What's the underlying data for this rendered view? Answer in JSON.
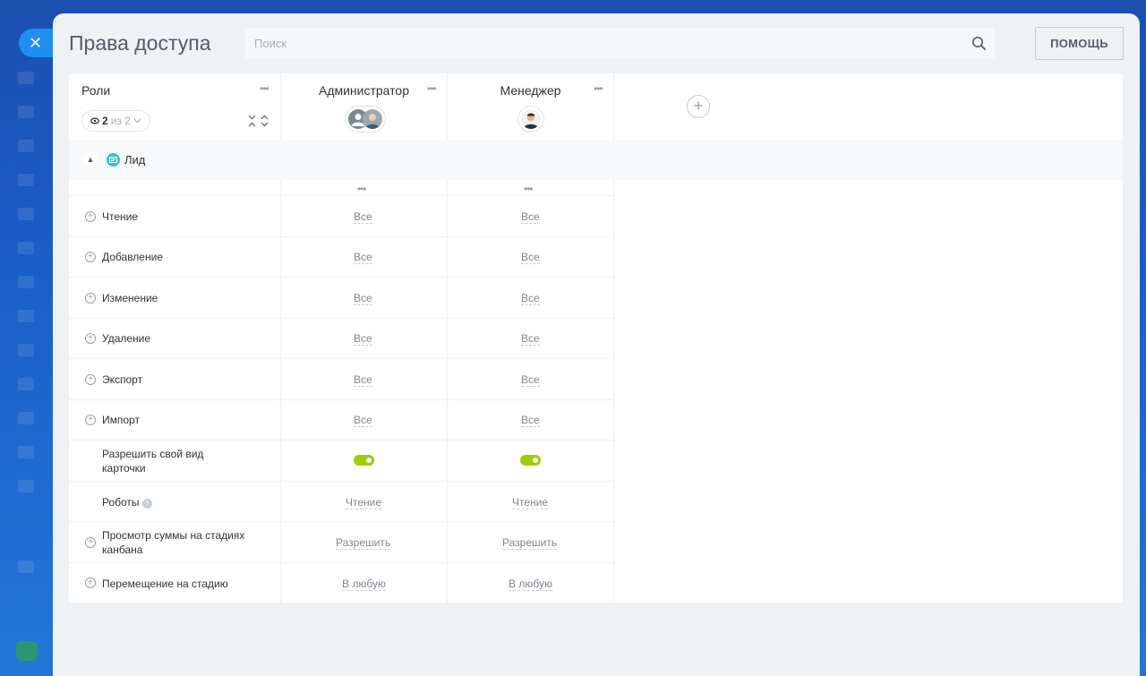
{
  "header": {
    "title": "Права доступа",
    "search_placeholder": "Поиск",
    "help_label": "ПОМОЩЬ"
  },
  "roles_header": {
    "title": "Роли",
    "filter_count": "2",
    "filter_of": "из 2"
  },
  "roles": [
    {
      "name": "Администратор"
    },
    {
      "name": "Менеджер"
    }
  ],
  "section": {
    "label": "Лид"
  },
  "permissions": [
    {
      "name": "Чтение",
      "values": [
        "Все",
        "Все"
      ],
      "expandable": true
    },
    {
      "name": "Добавление",
      "values": [
        "Все",
        "Все"
      ],
      "expandable": true
    },
    {
      "name": "Изменение",
      "values": [
        "Все",
        "Все"
      ],
      "expandable": true
    },
    {
      "name": "Удаление",
      "values": [
        "Все",
        "Все"
      ],
      "expandable": true
    },
    {
      "name": "Экспорт",
      "values": [
        "Все",
        "Все"
      ],
      "expandable": true
    },
    {
      "name": "Импорт",
      "values": [
        "Все",
        "Все"
      ],
      "expandable": true
    },
    {
      "name": "Разрешить свой вид карточки",
      "toggle": [
        true,
        true
      ],
      "expandable": false
    },
    {
      "name": "Роботы",
      "values": [
        "Чтение",
        "Чтение"
      ],
      "expandable": false,
      "help": true
    },
    {
      "name": "Просмотр суммы на стадиях канбана",
      "values": [
        "Разрешить",
        "Разрешить"
      ],
      "expandable": true
    },
    {
      "name": "Перемещение на стадию",
      "values": [
        "В любую",
        "В любую"
      ],
      "expandable": true
    }
  ],
  "colors": {
    "accent": "#1e8ff0",
    "toggle_on": "#9dcf00",
    "lead_icon": "#2fc6c6"
  }
}
